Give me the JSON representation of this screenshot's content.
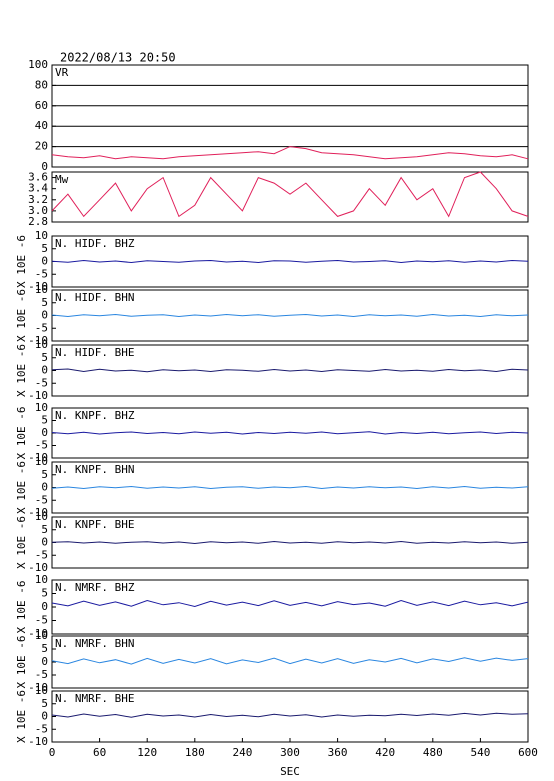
{
  "chart_data": [
    {
      "type": "line",
      "title": "2022/08/13 20:50",
      "label": "VR",
      "color": "#e0205a",
      "xlim": [
        0,
        600
      ],
      "ylim": [
        0,
        100
      ],
      "yticks": [
        0,
        20,
        40,
        60,
        80,
        100
      ],
      "grid": true,
      "x": [
        0,
        20,
        40,
        60,
        80,
        100,
        120,
        140,
        160,
        180,
        200,
        220,
        240,
        260,
        280,
        300,
        320,
        340,
        360,
        380,
        400,
        420,
        440,
        460,
        480,
        500,
        520,
        540,
        560,
        580,
        600
      ],
      "values": [
        12,
        10,
        9,
        11,
        8,
        10,
        9,
        8,
        10,
        11,
        12,
        13,
        14,
        15,
        13,
        20,
        18,
        14,
        13,
        12,
        10,
        8,
        9,
        10,
        12,
        14,
        13,
        11,
        10,
        12,
        8
      ]
    },
    {
      "type": "line",
      "label": "Mw",
      "color": "#e0205a",
      "xlim": [
        0,
        600
      ],
      "ylim": [
        2.8,
        3.7
      ],
      "yticks": [
        2.8,
        {
          "value": 3,
          "label": "3.0"
        },
        3.2,
        3.4,
        3.6
      ],
      "grid": false,
      "x": [
        0,
        20,
        40,
        60,
        80,
        100,
        120,
        140,
        160,
        180,
        200,
        220,
        240,
        260,
        280,
        300,
        320,
        340,
        360,
        380,
        400,
        420,
        440,
        460,
        480,
        500,
        520,
        540,
        560,
        580,
        600
      ],
      "values": [
        3.0,
        3.3,
        2.9,
        3.2,
        3.5,
        3.0,
        3.4,
        3.6,
        2.9,
        3.1,
        3.6,
        3.3,
        3.0,
        3.6,
        3.5,
        3.3,
        3.5,
        3.2,
        2.9,
        3.0,
        3.4,
        3.1,
        3.6,
        3.2,
        3.4,
        2.9,
        3.6,
        3.7,
        3.4,
        3.0,
        2.9
      ]
    },
    {
      "type": "line",
      "label": "N. HIDF. BHZ",
      "ylabel": "X 10E -6",
      "color": "#1a1aa0",
      "xlim": [
        0,
        600
      ],
      "ylim": [
        -10,
        10
      ],
      "yticks": [
        -10,
        -5,
        0,
        5,
        10
      ],
      "x": [
        0,
        20,
        40,
        60,
        80,
        100,
        120,
        140,
        160,
        180,
        200,
        220,
        240,
        260,
        280,
        300,
        320,
        340,
        360,
        380,
        400,
        420,
        440,
        460,
        480,
        500,
        520,
        540,
        560,
        580,
        600
      ],
      "values": [
        0.1,
        -0.3,
        0.4,
        -0.2,
        0.2,
        -0.4,
        0.3,
        0,
        -0.3,
        0.2,
        0.4,
        -0.2,
        0.1,
        -0.4,
        0.3,
        0.2,
        -0.3,
        0.1,
        0.4,
        -0.2,
        0,
        0.3,
        -0.4,
        0.2,
        -0.1,
        0.3,
        -0.3,
        0.2,
        -0.2,
        0.4,
        0.1
      ]
    },
    {
      "type": "line",
      "label": "N. HIDF. BHN",
      "ylabel": "X 10E -6",
      "color": "#2a86e0",
      "xlim": [
        0,
        600
      ],
      "ylim": [
        -10,
        10
      ],
      "yticks": [
        -10,
        -5,
        0,
        5,
        10
      ],
      "x": [
        0,
        20,
        40,
        60,
        80,
        100,
        120,
        140,
        160,
        180,
        200,
        220,
        240,
        260,
        280,
        300,
        320,
        340,
        360,
        380,
        400,
        420,
        440,
        460,
        480,
        500,
        520,
        540,
        560,
        580,
        600
      ],
      "values": [
        0.2,
        -0.4,
        0.3,
        -0.1,
        0.4,
        -0.3,
        0.1,
        0.3,
        -0.4,
        0.2,
        -0.2,
        0.4,
        -0.1,
        0.3,
        -0.3,
        0.1,
        0.4,
        -0.2,
        0.2,
        -0.4,
        0.3,
        -0.1,
        0.2,
        -0.3,
        0.4,
        -0.2,
        0.1,
        -0.4,
        0.3,
        -0.1,
        0.2
      ]
    },
    {
      "type": "line",
      "label": "N. HIDF. BHE",
      "ylabel": "X 10E -6",
      "color": "#1a1a6e",
      "xlim": [
        0,
        600
      ],
      "ylim": [
        -10,
        10
      ],
      "yticks": [
        -10,
        -5,
        0,
        5,
        10
      ],
      "x": [
        0,
        20,
        40,
        60,
        80,
        100,
        120,
        140,
        160,
        180,
        200,
        220,
        240,
        260,
        280,
        300,
        320,
        340,
        360,
        380,
        400,
        420,
        440,
        460,
        480,
        500,
        520,
        540,
        560,
        580,
        600
      ],
      "values": [
        0.3,
        0.6,
        -0.4,
        0.5,
        -0.2,
        0.1,
        -0.5,
        0.3,
        -0.1,
        0.2,
        -0.4,
        0.3,
        0.1,
        -0.3,
        0.4,
        -0.2,
        0.2,
        -0.4,
        0.3,
        0,
        -0.3,
        0.4,
        -0.2,
        0.1,
        -0.3,
        0.4,
        -0.1,
        0.2,
        -0.4,
        0.5,
        0.2
      ]
    },
    {
      "type": "line",
      "label": "N. KNPF. BHZ",
      "ylabel": "X 10E -6",
      "color": "#1a1aa0",
      "xlim": [
        0,
        600
      ],
      "ylim": [
        -10,
        10
      ],
      "yticks": [
        -10,
        -5,
        0,
        5,
        10
      ],
      "x": [
        0,
        20,
        40,
        60,
        80,
        100,
        120,
        140,
        160,
        180,
        200,
        220,
        240,
        260,
        280,
        300,
        320,
        340,
        360,
        380,
        400,
        420,
        440,
        460,
        480,
        500,
        520,
        540,
        560,
        580,
        600
      ],
      "values": [
        0.2,
        -0.3,
        0.3,
        -0.4,
        0.1,
        0.4,
        -0.2,
        0.2,
        -0.3,
        0.4,
        -0.1,
        0.3,
        -0.4,
        0.2,
        -0.2,
        0.3,
        -0.1,
        0.4,
        -0.3,
        0.1,
        0.5,
        -0.4,
        0.2,
        -0.2,
        0.3,
        -0.3,
        0.1,
        0.4,
        -0.2,
        0.3,
        0
      ]
    },
    {
      "type": "line",
      "label": "N. KNPF. BHN",
      "ylabel": "X 10E -6",
      "color": "#2a86e0",
      "xlim": [
        0,
        600
      ],
      "ylim": [
        -10,
        10
      ],
      "yticks": [
        -10,
        -5,
        0,
        5,
        10
      ],
      "x": [
        0,
        20,
        40,
        60,
        80,
        100,
        120,
        140,
        160,
        180,
        200,
        220,
        240,
        260,
        280,
        300,
        320,
        340,
        360,
        380,
        400,
        420,
        440,
        460,
        480,
        500,
        520,
        540,
        560,
        580,
        600
      ],
      "values": [
        -0.3,
        0.2,
        -0.4,
        0.3,
        -0.1,
        0.4,
        -0.3,
        0.2,
        -0.2,
        0.3,
        -0.4,
        0.1,
        0.3,
        -0.3,
        0.2,
        -0.1,
        0.4,
        -0.4,
        0.2,
        -0.2,
        0.3,
        -0.1,
        0.2,
        -0.4,
        0.3,
        -0.2,
        0.4,
        -0.3,
        0.1,
        -0.2,
        0.3
      ]
    },
    {
      "type": "line",
      "label": "N. KNPF. BHE",
      "ylabel": "X 10E -6",
      "color": "#1a1a6e",
      "xlim": [
        0,
        600
      ],
      "ylim": [
        -10,
        10
      ],
      "yticks": [
        -10,
        -5,
        0,
        5,
        10
      ],
      "x": [
        0,
        20,
        40,
        60,
        80,
        100,
        120,
        140,
        160,
        180,
        200,
        220,
        240,
        260,
        280,
        300,
        320,
        340,
        360,
        380,
        400,
        420,
        440,
        460,
        480,
        500,
        520,
        540,
        560,
        580,
        600
      ],
      "values": [
        0.1,
        0.3,
        -0.2,
        0.2,
        -0.3,
        0.1,
        0.3,
        -0.2,
        0.2,
        -0.4,
        0.3,
        -0.1,
        0.2,
        -0.3,
        0.4,
        -0.2,
        0.1,
        -0.3,
        0.3,
        -0.1,
        0.2,
        -0.2,
        0.4,
        -0.3,
        0.1,
        -0.2,
        0.3,
        -0.1,
        0.2,
        -0.3,
        0.1
      ]
    },
    {
      "type": "line",
      "label": "N. NMRF. BHZ",
      "ylabel": "X 10E -6",
      "color": "#1a1aa0",
      "xlim": [
        0,
        600
      ],
      "ylim": [
        -10,
        10
      ],
      "yticks": [
        -10,
        -5,
        0,
        5,
        10
      ],
      "x": [
        0,
        20,
        40,
        60,
        80,
        100,
        120,
        140,
        160,
        180,
        200,
        220,
        240,
        260,
        280,
        300,
        320,
        340,
        360,
        380,
        400,
        420,
        440,
        460,
        480,
        500,
        520,
        540,
        560,
        580,
        600
      ],
      "values": [
        1.5,
        0.4,
        2.2,
        0.6,
        1.9,
        0.3,
        2.4,
        0.8,
        1.6,
        0.2,
        2.1,
        0.7,
        1.8,
        0.5,
        2.3,
        0.6,
        1.7,
        0.4,
        2.0,
        0.9,
        1.5,
        0.3,
        2.4,
        0.6,
        1.9,
        0.5,
        2.2,
        0.8,
        1.6,
        0.4,
        1.8
      ]
    },
    {
      "type": "line",
      "label": "N. NMRF. BHN",
      "ylabel": "X 10E -6",
      "color": "#2a86e0",
      "xlim": [
        0,
        600
      ],
      "ylim": [
        -10,
        10
      ],
      "yticks": [
        -10,
        -5,
        0,
        5,
        10
      ],
      "x": [
        0,
        20,
        40,
        60,
        80,
        100,
        120,
        140,
        160,
        180,
        200,
        220,
        240,
        260,
        280,
        300,
        320,
        340,
        360,
        380,
        400,
        420,
        440,
        460,
        480,
        500,
        520,
        540,
        560,
        580,
        600
      ],
      "values": [
        0.5,
        -0.6,
        1.2,
        -0.3,
        0.9,
        -0.8,
        1.4,
        -0.5,
        1.0,
        -0.4,
        1.3,
        -0.7,
        0.8,
        -0.2,
        1.5,
        -0.6,
        1.1,
        -0.4,
        1.3,
        -0.5,
        0.9,
        0,
        1.4,
        -0.3,
        1.2,
        0.2,
        1.6,
        0.3,
        1.5,
        0.6,
        1.3
      ]
    },
    {
      "type": "line",
      "label": "N. NMRF. BHE",
      "ylabel": "X 10E -6",
      "color": "#1a1a6e",
      "xlim": [
        0,
        600
      ],
      "ylim": [
        -10,
        10
      ],
      "yticks": [
        -10,
        -5,
        0,
        5,
        10
      ],
      "xlabel": "SEC",
      "xticks": [
        0,
        60,
        120,
        180,
        240,
        300,
        360,
        420,
        480,
        540,
        600
      ],
      "x": [
        0,
        20,
        40,
        60,
        80,
        100,
        120,
        140,
        160,
        180,
        200,
        220,
        240,
        260,
        280,
        300,
        320,
        340,
        360,
        380,
        400,
        420,
        440,
        460,
        480,
        500,
        520,
        540,
        560,
        580,
        600
      ],
      "values": [
        0.6,
        -0.2,
        1.0,
        0.1,
        0.8,
        -0.3,
        0.9,
        0.2,
        0.6,
        -0.2,
        0.8,
        0,
        0.5,
        -0.1,
        0.9,
        0.2,
        0.7,
        -0.2,
        0.6,
        0.1,
        0.5,
        0.3,
        0.9,
        0.4,
        1.0,
        0.5,
        1.2,
        0.6,
        1.3,
        0.9,
        1.1
      ]
    }
  ]
}
